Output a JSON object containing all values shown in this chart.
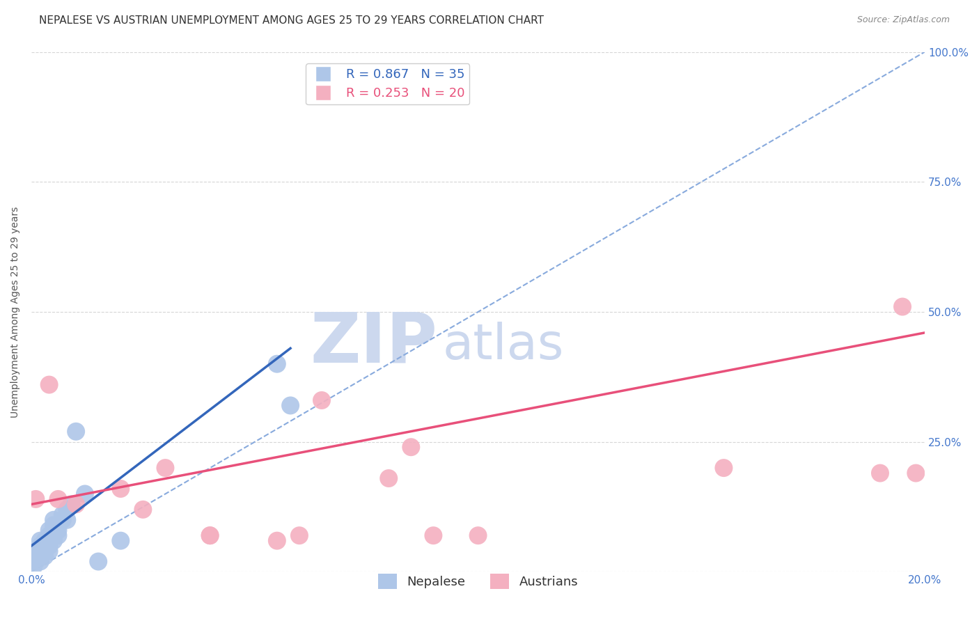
{
  "title": "NEPALESE VS AUSTRIAN UNEMPLOYMENT AMONG AGES 25 TO 29 YEARS CORRELATION CHART",
  "source": "Source: ZipAtlas.com",
  "xlabel": "",
  "ylabel": "Unemployment Among Ages 25 to 29 years",
  "xlim": [
    0.0,
    0.2
  ],
  "ylim": [
    0.0,
    1.0
  ],
  "xticks": [
    0.0,
    0.04,
    0.08,
    0.12,
    0.16,
    0.2
  ],
  "yticks": [
    0.0,
    0.25,
    0.5,
    0.75,
    1.0
  ],
  "xtick_labels": [
    "0.0%",
    "",
    "",
    "",
    "",
    "20.0%"
  ],
  "ytick_labels": [
    "",
    "25.0%",
    "50.0%",
    "75.0%",
    "100.0%"
  ],
  "nepalese_R": 0.867,
  "nepalese_N": 35,
  "austrians_R": 0.253,
  "austrians_N": 20,
  "nepalese_color": "#aec6e8",
  "austrians_color": "#f4b0c0",
  "nepalese_line_color": "#3366bb",
  "austrians_line_color": "#e8507a",
  "ref_line_color": "#88aadd",
  "background_color": "#ffffff",
  "watermark_ZIP": "ZIP",
  "watermark_atlas": "atlas",
  "watermark_color": "#ccd8ee",
  "nepalese_x": [
    0.0005,
    0.001,
    0.001,
    0.001,
    0.002,
    0.002,
    0.002,
    0.003,
    0.003,
    0.003,
    0.003,
    0.004,
    0.004,
    0.004,
    0.004,
    0.004,
    0.005,
    0.005,
    0.005,
    0.005,
    0.005,
    0.006,
    0.006,
    0.006,
    0.007,
    0.007,
    0.008,
    0.008,
    0.009,
    0.01,
    0.012,
    0.015,
    0.02,
    0.055,
    0.058
  ],
  "nepalese_y": [
    0.01,
    0.02,
    0.03,
    0.04,
    0.05,
    0.06,
    0.02,
    0.03,
    0.04,
    0.05,
    0.06,
    0.07,
    0.08,
    0.06,
    0.04,
    0.05,
    0.06,
    0.07,
    0.08,
    0.09,
    0.1,
    0.07,
    0.08,
    0.09,
    0.1,
    0.11,
    0.12,
    0.1,
    0.13,
    0.27,
    0.15,
    0.02,
    0.06,
    0.4,
    0.32
  ],
  "austrians_x": [
    0.001,
    0.004,
    0.006,
    0.01,
    0.02,
    0.025,
    0.03,
    0.04,
    0.04,
    0.055,
    0.06,
    0.065,
    0.08,
    0.085,
    0.09,
    0.1,
    0.155,
    0.19,
    0.195,
    0.198
  ],
  "austrians_y": [
    0.14,
    0.36,
    0.14,
    0.13,
    0.16,
    0.12,
    0.2,
    0.07,
    0.07,
    0.06,
    0.07,
    0.33,
    0.18,
    0.24,
    0.07,
    0.07,
    0.2,
    0.19,
    0.51,
    0.19
  ],
  "nep_line_x": [
    0.0,
    0.058
  ],
  "nep_line_y": [
    0.05,
    0.43
  ],
  "aut_line_x": [
    0.0,
    0.2
  ],
  "aut_line_y": [
    0.13,
    0.46
  ],
  "ref_line_x": [
    0.0,
    0.2
  ],
  "ref_line_y": [
    0.0,
    1.0
  ],
  "title_fontsize": 11,
  "axis_label_fontsize": 10,
  "tick_fontsize": 11,
  "legend_fontsize": 13,
  "source_fontsize": 9
}
